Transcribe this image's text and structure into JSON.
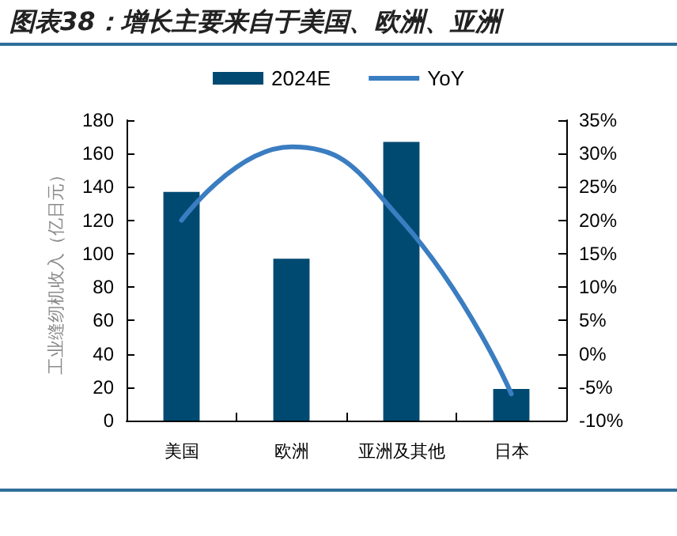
{
  "chart_data": {
    "type": "bar",
    "title": "图表38：增长主要来自于美国、欧洲、亚洲",
    "categories": [
      "美国",
      "欧洲",
      "亚洲及其他",
      "日本"
    ],
    "ylabel": "工业缝纫机收入（亿日元）",
    "series": [
      {
        "name": "2024E",
        "color": "#004a72",
        "values": [
          137,
          97,
          167,
          19
        ]
      },
      {
        "name": "YoY",
        "type": "line",
        "axis": "y2",
        "color": "#3b7dc1",
        "values": [
          20,
          31,
          20,
          -6
        ]
      }
    ],
    "ylim": [
      0,
      180
    ],
    "yticks": [
      0,
      20,
      40,
      60,
      80,
      100,
      120,
      140,
      160,
      180
    ],
    "y2lim": [
      -10,
      35
    ],
    "y2ticks": [
      {
        "value": -10,
        "label": "-10%"
      },
      {
        "value": -5,
        "label": "-5%"
      },
      {
        "value": 0,
        "label": "0%"
      },
      {
        "value": 5,
        "label": "5%"
      },
      {
        "value": 10,
        "label": "10%"
      },
      {
        "value": 15,
        "label": "15%"
      },
      {
        "value": 20,
        "label": "20%"
      },
      {
        "value": 25,
        "label": "25%"
      },
      {
        "value": 30,
        "label": "30%"
      },
      {
        "value": 35,
        "label": "35%"
      }
    ],
    "legend": "top",
    "grid": false,
    "marker": "none"
  }
}
